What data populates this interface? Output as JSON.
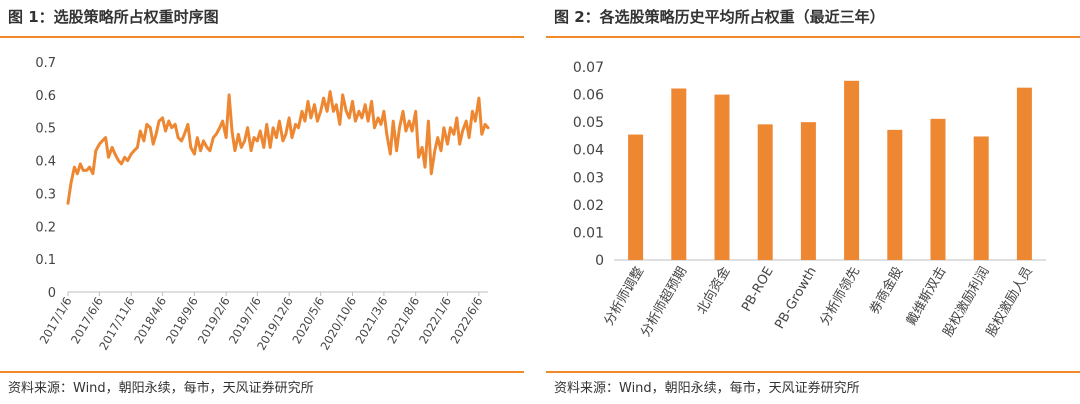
{
  "charts": [
    {
      "title": "图 1：选股策略所占权重时序图",
      "source": "资料来源：Wind，朝阳永续，每市，天风证券研究所"
    },
    {
      "title": "图 2：各选股策略历史平均所占权重（最近三年）",
      "source": "资料来源：Wind，朝阳永续，每市，天风证券研究所"
    }
  ],
  "colors": {
    "accent": "#f08a2a",
    "bar": "#ee8732",
    "line": "#ee8732",
    "axis": "#bfbfbf"
  },
  "chart_data": [
    {
      "type": "line",
      "title": "图 1：选股策略所占权重时序图",
      "ylim": [
        0,
        0.7
      ],
      "yticks": [
        "0",
        "0.1",
        "0.2",
        "0.3",
        "0.4",
        "0.5",
        "0.6",
        "0.7"
      ],
      "xticks": [
        "2017/1/6",
        "2017/6/6",
        "2017/11/6",
        "2018/4/6",
        "2018/9/6",
        "2019/2/6",
        "2019/7/6",
        "2019/12/6",
        "2020/5/6",
        "2020/10/6",
        "2021/3/6",
        "2021/8/6",
        "2022/1/6",
        "2022/6/6"
      ],
      "x": [
        "2017-01-06",
        "2017-01-20",
        "2017-02-06",
        "2017-02-20",
        "2017-03-06",
        "2017-03-20",
        "2017-04-06",
        "2017-04-20",
        "2017-05-06",
        "2017-05-20",
        "2017-06-06",
        "2017-06-20",
        "2017-07-06",
        "2017-07-20",
        "2017-08-06",
        "2017-08-20",
        "2017-09-06",
        "2017-09-20",
        "2017-10-06",
        "2017-10-20",
        "2017-11-06",
        "2017-11-20",
        "2017-12-06",
        "2017-12-20",
        "2018-01-06",
        "2018-01-20",
        "2018-02-06",
        "2018-02-20",
        "2018-03-06",
        "2018-03-20",
        "2018-04-06",
        "2018-04-20",
        "2018-05-06",
        "2018-05-20",
        "2018-06-06",
        "2018-06-20",
        "2018-07-06",
        "2018-07-20",
        "2018-08-06",
        "2018-08-20",
        "2018-09-06",
        "2018-09-20",
        "2018-10-06",
        "2018-10-20",
        "2018-11-06",
        "2018-11-20",
        "2018-12-06",
        "2018-12-20",
        "2019-01-06",
        "2019-01-20",
        "2019-02-06",
        "2019-02-20",
        "2019-03-06",
        "2019-03-20",
        "2019-04-06",
        "2019-04-20",
        "2019-05-06",
        "2019-05-20",
        "2019-06-06",
        "2019-06-20",
        "2019-07-06",
        "2019-07-20",
        "2019-08-06",
        "2019-08-20",
        "2019-09-06",
        "2019-09-20",
        "2019-10-06",
        "2019-10-20",
        "2019-11-06",
        "2019-11-20",
        "2019-12-06",
        "2019-12-20",
        "2020-01-06",
        "2020-01-20",
        "2020-02-06",
        "2020-02-20",
        "2020-03-06",
        "2020-03-20",
        "2020-04-06",
        "2020-04-20",
        "2020-05-06",
        "2020-05-20",
        "2020-06-06",
        "2020-06-20",
        "2020-07-06",
        "2020-07-20",
        "2020-08-06",
        "2020-08-20",
        "2020-09-06",
        "2020-09-20",
        "2020-10-06",
        "2020-10-20",
        "2020-11-06",
        "2020-11-20",
        "2020-12-06",
        "2020-12-20",
        "2021-01-06",
        "2021-01-20",
        "2021-02-06",
        "2021-02-20",
        "2021-03-06",
        "2021-03-20",
        "2021-04-06",
        "2021-04-20",
        "2021-05-06",
        "2021-05-20",
        "2021-06-06",
        "2021-06-20",
        "2021-07-06",
        "2021-07-20",
        "2021-08-06",
        "2021-08-20",
        "2021-09-06",
        "2021-09-20",
        "2021-10-06",
        "2021-10-20",
        "2021-11-06",
        "2021-11-20",
        "2021-12-06",
        "2021-12-20",
        "2022-01-06",
        "2022-01-20",
        "2022-02-06",
        "2022-02-20",
        "2022-03-06",
        "2022-03-20",
        "2022-04-06",
        "2022-04-20",
        "2022-05-06",
        "2022-05-20",
        "2022-06-06",
        "2022-06-20",
        "2022-07-06",
        "2022-07-20"
      ],
      "y": [
        0.27,
        0.33,
        0.38,
        0.36,
        0.39,
        0.37,
        0.37,
        0.38,
        0.36,
        0.43,
        0.45,
        0.46,
        0.47,
        0.41,
        0.44,
        0.42,
        0.4,
        0.39,
        0.41,
        0.4,
        0.42,
        0.43,
        0.44,
        0.49,
        0.46,
        0.51,
        0.5,
        0.45,
        0.48,
        0.52,
        0.53,
        0.49,
        0.52,
        0.5,
        0.51,
        0.47,
        0.46,
        0.48,
        0.51,
        0.44,
        0.42,
        0.47,
        0.43,
        0.46,
        0.44,
        0.43,
        0.47,
        0.48,
        0.5,
        0.52,
        0.47,
        0.6,
        0.49,
        0.43,
        0.48,
        0.44,
        0.46,
        0.5,
        0.43,
        0.47,
        0.46,
        0.49,
        0.44,
        0.51,
        0.44,
        0.5,
        0.47,
        0.52,
        0.46,
        0.48,
        0.53,
        0.47,
        0.51,
        0.5,
        0.55,
        0.52,
        0.58,
        0.53,
        0.57,
        0.52,
        0.55,
        0.59,
        0.55,
        0.61,
        0.55,
        0.57,
        0.51,
        0.6,
        0.55,
        0.53,
        0.58,
        0.52,
        0.55,
        0.53,
        0.57,
        0.52,
        0.58,
        0.5,
        0.53,
        0.51,
        0.55,
        0.48,
        0.42,
        0.52,
        0.43,
        0.5,
        0.55,
        0.49,
        0.52,
        0.49,
        0.55,
        0.41,
        0.44,
        0.38,
        0.52,
        0.36,
        0.43,
        0.47,
        0.43,
        0.5,
        0.45,
        0.5,
        0.48,
        0.53,
        0.45,
        0.49,
        0.52,
        0.47,
        0.55,
        0.52,
        0.59,
        0.48,
        0.51,
        0.5
      ]
    },
    {
      "type": "bar",
      "title": "图 2：各选股策略历史平均所占权重（最近三年）",
      "categories": [
        "分析师调整",
        "分析师超预期",
        "北向资金",
        "PB-ROE",
        "PB-Growth",
        "分析师领先",
        "券商金股",
        "戴维斯双击",
        "股权激励利润",
        "股权激励人员"
      ],
      "values": [
        0.0455,
        0.0622,
        0.06,
        0.0492,
        0.05,
        0.065,
        0.0472,
        0.0512,
        0.0448,
        0.0625
      ],
      "ylim": [
        0,
        0.07
      ],
      "yticks": [
        "0",
        "0.01",
        "0.02",
        "0.03",
        "0.04",
        "0.05",
        "0.06",
        "0.07"
      ]
    }
  ]
}
